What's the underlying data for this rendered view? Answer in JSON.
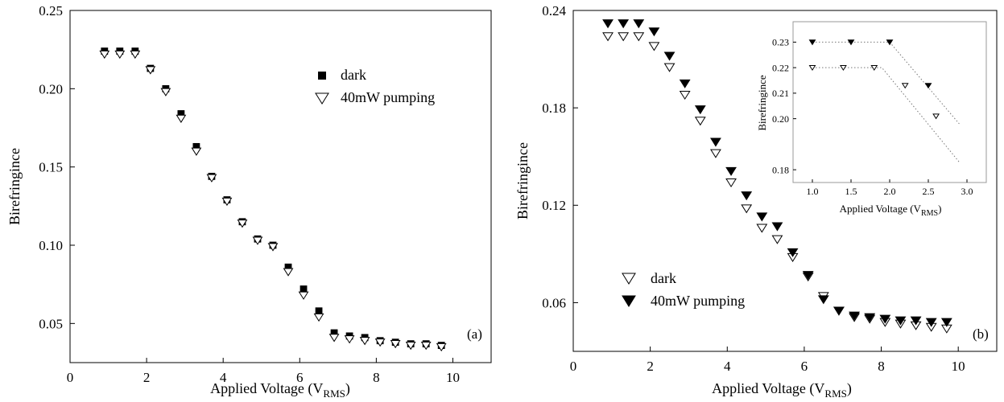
{
  "chart_data": [
    {
      "type": "scatter",
      "panel_label": "(a)",
      "xlabel_main": "Applied Voltage (V",
      "xlabel_sub": "RMS",
      "xlabel_close": ")",
      "ylabel": "Birefringince",
      "xlim": [
        0,
        11
      ],
      "ylim": [
        0.025,
        0.25
      ],
      "xticks": [
        "0",
        "2",
        "4",
        "6",
        "8",
        "10"
      ],
      "yticks": [
        "0.05",
        "0.10",
        "0.15",
        "0.20",
        "0.25"
      ],
      "legend_position": "top-right",
      "series": [
        {
          "name": "dark",
          "marker": "filled-square",
          "color": "#000000",
          "x": [
            0.9,
            1.3,
            1.7,
            2.1,
            2.5,
            2.9,
            3.3,
            3.7,
            4.1,
            4.5,
            4.9,
            5.3,
            5.7,
            6.1,
            6.5,
            6.9,
            7.3,
            7.7,
            8.1,
            8.5,
            8.9,
            9.3,
            9.7
          ],
          "y": [
            0.224,
            0.224,
            0.224,
            0.213,
            0.2,
            0.184,
            0.163,
            0.144,
            0.129,
            0.115,
            0.104,
            0.1,
            0.086,
            0.072,
            0.058,
            0.044,
            0.042,
            0.041,
            0.039,
            0.038,
            0.037,
            0.037,
            0.036
          ]
        },
        {
          "name": "40mW pumping",
          "marker": "open-triangle-down",
          "color": "#000000",
          "x": [
            0.9,
            1.3,
            1.7,
            2.1,
            2.5,
            2.9,
            3.3,
            3.7,
            4.1,
            4.5,
            4.9,
            5.3,
            5.7,
            6.1,
            6.5,
            6.9,
            7.3,
            7.7,
            8.1,
            8.5,
            8.9,
            9.3,
            9.7
          ],
          "y": [
            0.222,
            0.222,
            0.222,
            0.212,
            0.198,
            0.181,
            0.16,
            0.143,
            0.128,
            0.114,
            0.103,
            0.099,
            0.083,
            0.068,
            0.054,
            0.041,
            0.04,
            0.039,
            0.038,
            0.037,
            0.036,
            0.036,
            0.035
          ]
        }
      ]
    },
    {
      "type": "scatter",
      "panel_label": "(b)",
      "xlabel_main": "Applied Voltage (V",
      "xlabel_sub": "RMS",
      "xlabel_close": ")",
      "ylabel": "Birefringince",
      "xlim": [
        0,
        11
      ],
      "ylim": [
        0.03,
        0.24
      ],
      "xticks": [
        "0",
        "2",
        "4",
        "6",
        "8",
        "10"
      ],
      "yticks": [
        "0.06",
        "0.12",
        "0.18",
        "0.24"
      ],
      "legend_position": "bottom-left",
      "series": [
        {
          "name": "dark",
          "marker": "open-triangle-down",
          "color": "#000000",
          "x": [
            0.9,
            1.3,
            1.7,
            2.1,
            2.5,
            2.9,
            3.3,
            3.7,
            4.1,
            4.5,
            4.9,
            5.3,
            5.7,
            6.1,
            6.5,
            6.9,
            7.3,
            7.7,
            8.1,
            8.5,
            8.9,
            9.3,
            9.7
          ],
          "y": [
            0.224,
            0.224,
            0.224,
            0.218,
            0.205,
            0.188,
            0.172,
            0.152,
            0.134,
            0.118,
            0.106,
            0.099,
            0.088,
            0.076,
            0.064,
            0.055,
            0.051,
            0.05,
            0.048,
            0.047,
            0.046,
            0.045,
            0.044
          ]
        },
        {
          "name": "40mW pumping",
          "marker": "filled-triangle-down",
          "color": "#000000",
          "x": [
            0.9,
            1.3,
            1.7,
            2.1,
            2.5,
            2.9,
            3.3,
            3.7,
            4.1,
            4.5,
            4.9,
            5.3,
            5.7,
            6.1,
            6.5,
            6.9,
            7.3,
            7.7,
            8.1,
            8.5,
            8.9,
            9.3,
            9.7
          ],
          "y": [
            0.232,
            0.232,
            0.232,
            0.227,
            0.212,
            0.195,
            0.179,
            0.159,
            0.141,
            0.126,
            0.113,
            0.107,
            0.091,
            0.077,
            0.062,
            0.055,
            0.052,
            0.051,
            0.05,
            0.049,
            0.049,
            0.048,
            0.048
          ]
        }
      ],
      "inset": {
        "type": "scatter",
        "xlabel_main": "Applied Voltage (V",
        "xlabel_sub": "RMS",
        "xlabel_close": ")",
        "ylabel": "Birefringince",
        "xlim": [
          0.75,
          3.25
        ],
        "ylim": [
          0.175,
          0.238
        ],
        "xticks": [
          "1.0",
          "1.5",
          "2.0",
          "2.5",
          "3.0"
        ],
        "yticks": [
          "0.18",
          "0.20",
          "0.21",
          "0.22",
          "0.23"
        ],
        "ytick_values": [
          0.18,
          0.2,
          0.21,
          0.22,
          0.23
        ],
        "series": [
          {
            "name": "40mW pumping",
            "marker": "filled-triangle-down",
            "x": [
              1.0,
              1.5,
              2.0,
              2.5
            ],
            "y": [
              0.23,
              0.23,
              0.23,
              0.213
            ],
            "fit_x": [
              1.0,
              2.0,
              2.9
            ],
            "fit_y": [
              0.23,
              0.23,
              0.198
            ]
          },
          {
            "name": "dark",
            "marker": "open-triangle-down",
            "x": [
              1.0,
              1.4,
              1.8,
              2.2,
              2.6
            ],
            "y": [
              0.22,
              0.22,
              0.22,
              0.213,
              0.201
            ],
            "fit_x": [
              1.0,
              1.9,
              2.9
            ],
            "fit_y": [
              0.22,
              0.22,
              0.183
            ]
          }
        ]
      }
    }
  ]
}
